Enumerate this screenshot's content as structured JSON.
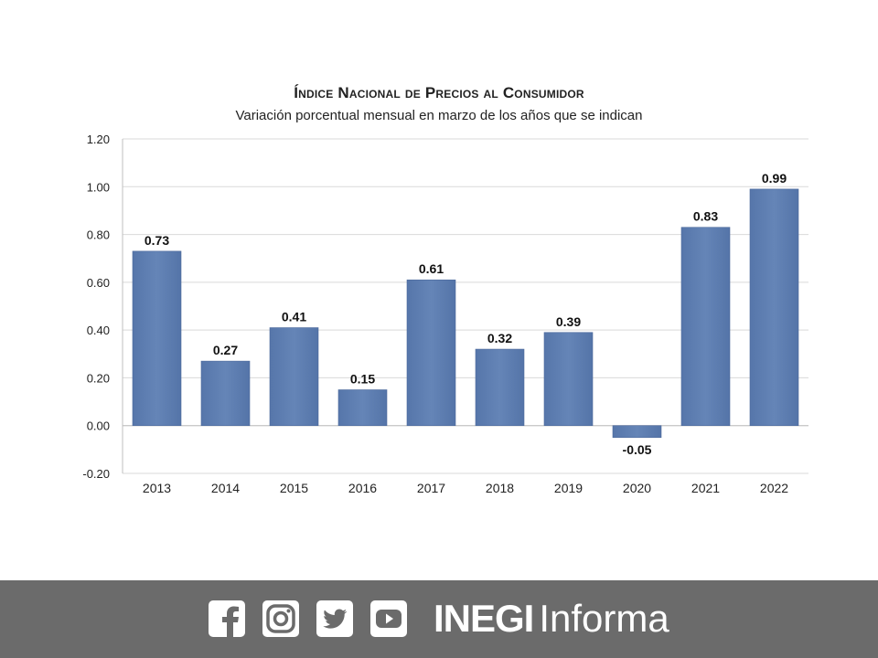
{
  "chart_data": {
    "type": "bar",
    "title": "Índice Nacional de Precios al Consumidor",
    "subtitle": "Variación porcentual mensual en marzo de los años que se indican",
    "categories": [
      "2013",
      "2014",
      "2015",
      "2016",
      "2017",
      "2018",
      "2019",
      "2020",
      "2021",
      "2022"
    ],
    "values": [
      0.73,
      0.27,
      0.41,
      0.15,
      0.61,
      0.32,
      0.39,
      -0.05,
      0.83,
      0.99
    ],
    "value_labels": [
      "0.73",
      "0.27",
      "0.41",
      "0.15",
      "0.61",
      "0.32",
      "0.39",
      "-0.05",
      "0.83",
      "0.99"
    ],
    "yticks": [
      "-0.20",
      "0.00",
      "0.20",
      "0.40",
      "0.60",
      "0.80",
      "1.00",
      "1.20"
    ],
    "ylim": [
      -0.2,
      1.2
    ],
    "xlabel": "",
    "ylabel": "",
    "grid": true,
    "bar_color": "#6585b7"
  },
  "footer": {
    "brand_bold": "INEGI",
    "brand_light": "Informa",
    "social_icons": [
      "facebook-icon",
      "instagram-icon",
      "twitter-icon",
      "youtube-icon"
    ],
    "background": "#6b6b6b"
  }
}
